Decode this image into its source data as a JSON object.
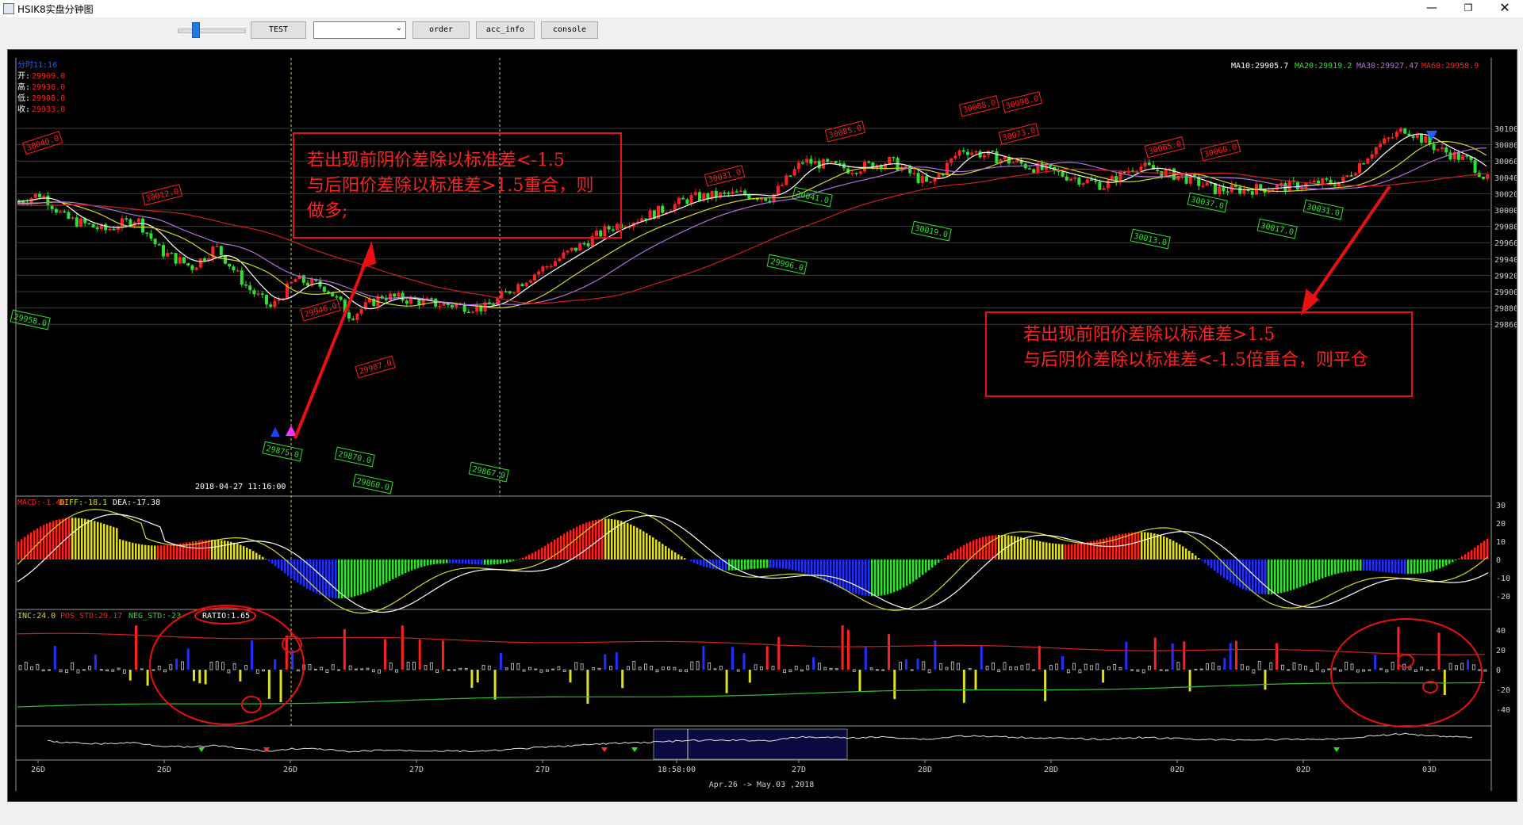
{
  "window": {
    "title": "HSIK8实盘分钟图",
    "min_icon": "minimize-icon",
    "max_icon": "restore-icon",
    "close_icon": "close-icon"
  },
  "toolbar": {
    "test_label": "TEST",
    "combo_value": "",
    "order_label": "order",
    "acc_info_label": "acc_info",
    "console_label": "console"
  },
  "main_panel": {
    "period_label": "分时11:16",
    "ohlc": [
      {
        "label": "开:",
        "value": "29909.0"
      },
      {
        "label": "高:",
        "value": "29938.0"
      },
      {
        "label": "低:",
        "value": "29908.0"
      },
      {
        "label": "收:",
        "value": "29933.0"
      }
    ],
    "ma": {
      "ma10": "MA10:29905.7",
      "ma20": "MA20:29919.2",
      "ma30": "MA30:29927.47",
      "ma60": "MA60:29958.9"
    },
    "y_ticks": [
      "30100",
      "30080",
      "30060",
      "30040",
      "30020",
      "30000",
      "29980",
      "29960",
      "29940",
      "29920",
      "29900",
      "29880",
      "29860"
    ],
    "cursor_time": "2018-04-27 11:16:00",
    "red_tags": [
      "30040.0",
      "30012.0",
      "29946.0",
      "29907.0",
      "30031.0",
      "30085.0",
      "30088.0",
      "30090.0",
      "30073.0",
      "30065.0",
      "30060.0"
    ],
    "green_tags": [
      "29958.0",
      "29875.0",
      "29870.0",
      "29860.0",
      "29867.0",
      "29996.0",
      "30041.0",
      "30019.0",
      "30013.0",
      "30037.0",
      "30017.0",
      "30031.0"
    ]
  },
  "macd_panel": {
    "macd": "MACD:-1.46",
    "diff": "DIFF:-18.1",
    "dea": "DEA:-17.38",
    "y_ticks": [
      "30",
      "20",
      "10",
      "0",
      "-10",
      "-20"
    ]
  },
  "inc_panel": {
    "inc": "INC:24.0",
    "pos_std": "POS_STD:29.17",
    "neg_std": "NEG_STD:-23",
    "ratio": "RATIO:1.65",
    "y_ticks": [
      "40",
      "20",
      "0",
      "-20",
      "-40"
    ]
  },
  "x_axis": {
    "labels": [
      "26D",
      "26D",
      "26D",
      "27D",
      "27D",
      "18:58:00",
      "27D",
      "28D",
      "28D",
      "02D",
      "02D",
      "03D"
    ],
    "range": "Apr.26 -> May.03 ,2018"
  },
  "annotations": {
    "top_left": [
      "若出现前阴价差除以标准差<-1.5",
      "与后阳价差除以标准差>1.5重合，则",
      "做多;"
    ],
    "right": [
      "若出现前阳价差除以标准差>1.5",
      "与后阴价差除以标准差<-1.5倍重合，则平仓"
    ]
  },
  "colors": {
    "up": "#ff2020",
    "down": "#30e030",
    "ma_white": "#ffffff",
    "ma_yellow": "#d8d820",
    "ma_purple": "#b070e0",
    "ma_red": "#d02020",
    "macd_blue": "#2030ff"
  }
}
